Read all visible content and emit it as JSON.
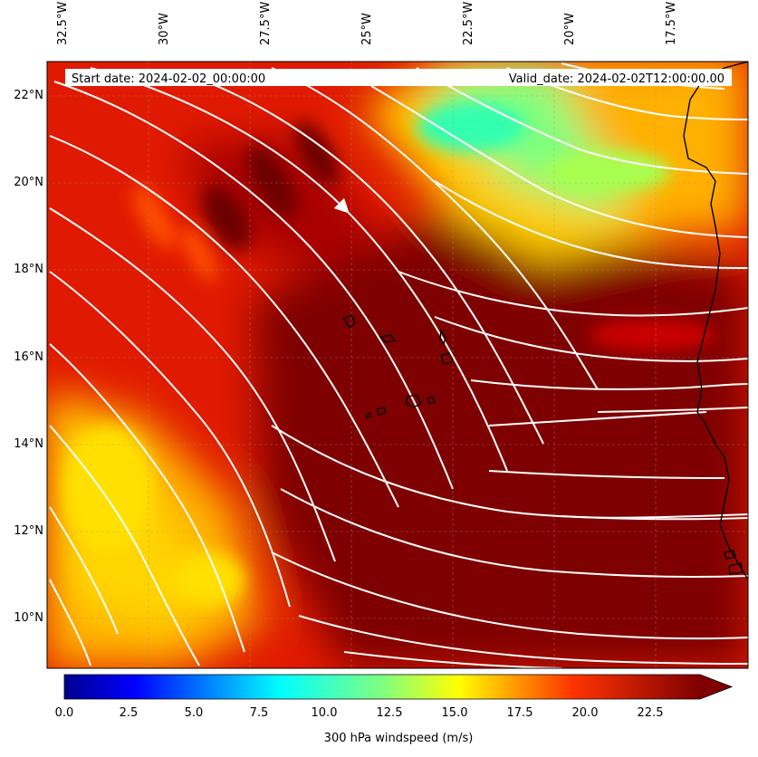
{
  "map": {
    "start_label": "Start date: 2024-02-02_00:00:00",
    "valid_label": "Valid_date: 2024-02-02T12:00:00.00",
    "lon_labels": [
      "32.5°W",
      "30°W",
      "27.5°W",
      "25°W",
      "22.5°W",
      "20°W",
      "17.5°W"
    ],
    "lat_labels": [
      "22°N",
      "20°N",
      "18°N",
      "16°N",
      "14°N",
      "12°N",
      "10°N"
    ],
    "extent": {
      "west": -32.5,
      "east": -15.1,
      "south": 8.9,
      "north": 22.8
    },
    "field": "300 hPa windspeed",
    "streamline_color": "#ffffff",
    "coastline_color": "#000000",
    "features": [
      "Cape Verde islands",
      "West African coastline (Mauritania, Senegal, Guinea-Bissau)"
    ]
  },
  "colorbar": {
    "label": "300 hPa windspeed (m/s)",
    "min": 0.0,
    "max": 25.0,
    "extend": "max",
    "colormap": "jet",
    "ticks": [
      "0.0",
      "2.5",
      "5.0",
      "7.5",
      "10.0",
      "12.5",
      "15.0",
      "17.5",
      "20.0",
      "22.5"
    ]
  }
}
